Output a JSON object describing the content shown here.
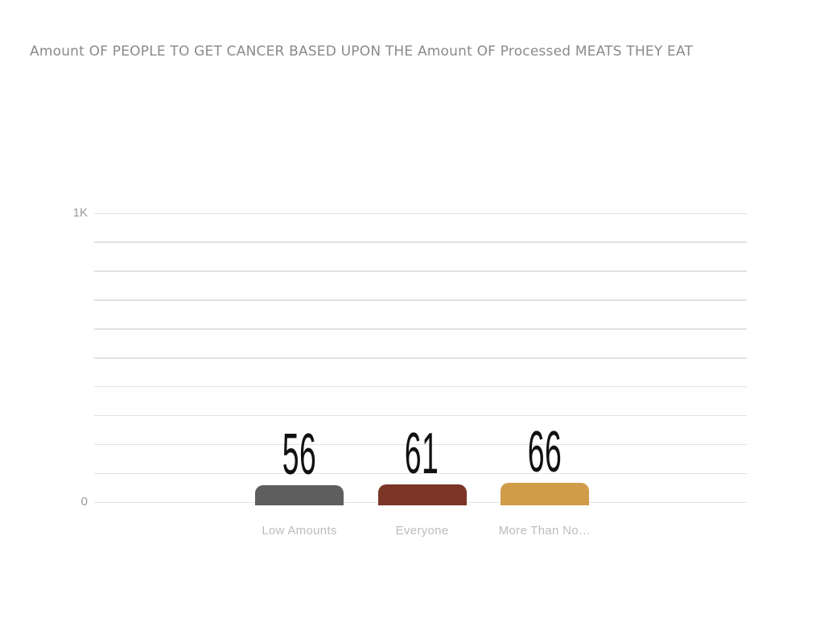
{
  "page": {
    "background_color": "#ffffff"
  },
  "chart_data": {
    "type": "bar",
    "title": "Amount OF PEOPLE TO GET CANCER BASED UPON THE Amount OF Processed MEATS THEY EAT",
    "categories": [
      "Low Amounts",
      "Everyone",
      "More Than No…"
    ],
    "values": [
      56,
      61,
      66
    ],
    "value_labels": [
      "56",
      "61",
      "66"
    ],
    "bar_colors": [
      "#5e5e5e",
      "#7b3526",
      "#d19c4a"
    ],
    "xlabel": "",
    "ylabel": "",
    "ylim": [
      0,
      1000
    ],
    "grid": true,
    "gridline_interval": 100,
    "gridline_color": "#e2e2e2",
    "yticks": [
      {
        "value": 0,
        "label": "0"
      },
      {
        "value": 1000,
        "label": "1K"
      }
    ],
    "title_color": "#8a8a8a",
    "tick_label_color": "#9a9a9a",
    "category_label_color": "#bcbcbc",
    "value_label_color": "#111111",
    "legend": null
  }
}
